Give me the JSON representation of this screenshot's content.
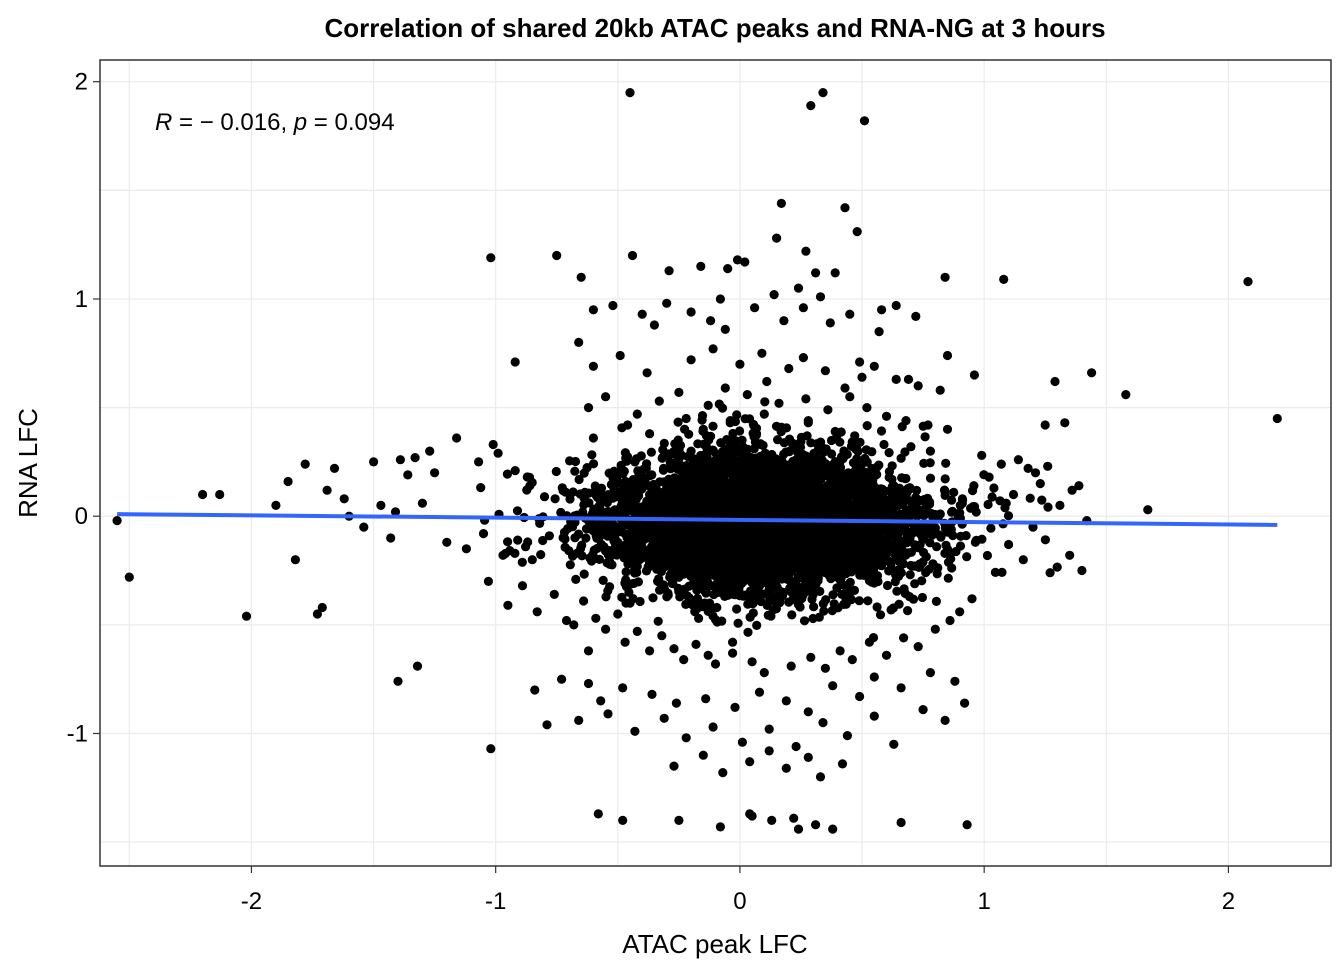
{
  "chart_data": {
    "type": "scatter",
    "title": "Correlation of shared 20kb ATAC peaks and RNA-NG  at 3 hours",
    "xlabel": "ATAC peak LFC",
    "ylabel": "RNA LFC",
    "xlim": [
      -2.62,
      2.42
    ],
    "ylim": [
      -1.61,
      2.1
    ],
    "x_ticks": [
      -2,
      -1,
      0,
      1,
      2
    ],
    "x_tick_labels": [
      "-2",
      "-1",
      "0",
      "1",
      "2"
    ],
    "y_ticks": [
      -1,
      0,
      1,
      2
    ],
    "y_tick_labels": [
      "-1",
      "0",
      "1",
      "2"
    ],
    "grid": true,
    "annotation": {
      "r_symbol": "R",
      "r_text": " = − 0.016, ",
      "p_symbol": "p",
      "p_text": " = 0.094"
    },
    "fit_line": {
      "color": "#3366ff",
      "x": [
        -2.55,
        2.2
      ],
      "y": [
        0.01,
        -0.04
      ]
    },
    "point_color": "#000000",
    "points_x": [
      -0.45,
      0.29,
      0.34,
      0.51,
      0.17,
      0.43,
      0.15,
      -0.01,
      0.27,
      0.48,
      -1.02,
      -0.75,
      -0.65,
      -0.44,
      -0.29,
      -0.16,
      -0.05,
      0.02,
      0.31,
      0.39,
      0.84,
      1.08,
      2.08,
      0.24,
      0.33,
      -0.6,
      -0.52,
      -0.4,
      -0.3,
      -0.2,
      -0.08,
      0.06,
      0.14,
      0.26,
      0.45,
      0.58,
      0.64,
      0.72,
      -0.35,
      -0.12,
      -0.06,
      0.18,
      0.37,
      0.57,
      0.85,
      0.96,
      -0.92,
      1.29,
      1.44,
      2.2,
      1.58,
      1.67,
      1.25,
      1.33,
      -2.55,
      -2.5,
      -2.2,
      -2.13,
      -2.02,
      -1.78,
      -1.73,
      -1.71,
      -1.66,
      -1.62,
      -1.5,
      -1.47,
      -1.39,
      -1.36,
      -1.33,
      -1.3,
      -1.27,
      -1.25,
      -1.16,
      -1.07,
      -1.01,
      -0.99,
      -0.92,
      -0.86,
      -0.8,
      -1.9,
      -1.85,
      -1.82,
      -1.69,
      -1.6,
      -1.54,
      -1.43,
      -1.41,
      -1.2,
      -1.12,
      -1.05,
      -0.97,
      -0.91,
      -0.85,
      -0.78,
      1.02,
      1.07,
      1.12,
      1.18,
      1.23,
      1.31,
      1.36,
      1.42,
      1.1,
      1.16,
      1.2,
      1.27,
      1.35,
      1.4,
      0.99,
      1.04,
      1.09,
      1.14,
      1.21,
      1.26,
      -1.03,
      -0.95,
      -0.89,
      -0.83,
      -0.76,
      -0.71,
      -0.68,
      -0.64,
      -0.59,
      -0.55,
      -0.5,
      -0.47,
      -0.42,
      -0.37,
      -0.32,
      -0.27,
      -0.23,
      -0.18,
      -0.13,
      -0.1,
      -0.03,
      0.05,
      0.1,
      0.21,
      0.29,
      0.35,
      0.41,
      0.46,
      0.53,
      0.6,
      0.67,
      0.73,
      0.8,
      0.86,
      0.9,
      0.95,
      -0.84,
      -0.73,
      -0.62,
      -0.57,
      -0.48,
      -0.36,
      -0.26,
      -0.14,
      -0.02,
      0.08,
      0.19,
      0.28,
      0.38,
      0.49,
      0.55,
      0.66,
      0.78,
      0.88,
      -1.02,
      -0.79,
      -0.66,
      -0.54,
      -0.43,
      -0.31,
      -0.22,
      -0.11,
      0.01,
      0.12,
      0.23,
      0.34,
      0.44,
      0.55,
      0.63,
      0.75,
      0.84,
      0.92,
      -0.66,
      -0.6,
      -0.49,
      -0.38,
      -0.2,
      -0.11,
      0.0,
      0.09,
      0.2,
      0.26,
      0.35,
      0.49,
      0.5,
      0.55,
      0.64,
      0.73,
      0.82,
      -0.62,
      -0.55,
      -0.42,
      -0.33,
      -0.25,
      -0.13,
      -0.06,
      0.03,
      0.16,
      0.27,
      0.36,
      0.45,
      0.52,
      0.6,
      0.68,
      0.77,
      0.85,
      -0.6,
      -0.46,
      -0.37,
      -0.22,
      -0.15,
      -0.04,
      0.1,
      0.17,
      0.28,
      0.39,
      0.47,
      0.59,
      0.7,
      0.78,
      -0.27,
      -0.15,
      -0.07,
      0.04,
      0.12,
      0.19,
      0.28,
      0.33,
      0.42,
      -1.4,
      -1.32,
      -0.58,
      -0.48,
      0.93,
      0.66,
      -0.25,
      -0.08,
      0.05,
      0.13,
      0.24,
      0.31,
      0.22,
      0.04,
      0.38,
      -0.45,
      -0.62,
      -0.03,
      0.11,
      0.69,
      0.43
    ],
    "points_y": [
      1.95,
      1.89,
      1.95,
      1.82,
      1.44,
      1.42,
      1.28,
      1.18,
      1.22,
      1.31,
      1.19,
      1.2,
      1.1,
      1.2,
      1.13,
      1.15,
      1.14,
      1.17,
      1.12,
      1.12,
      1.1,
      1.09,
      1.08,
      1.05,
      1.01,
      0.95,
      0.97,
      0.93,
      0.98,
      0.94,
      1.0,
      0.96,
      1.02,
      0.96,
      0.93,
      0.95,
      0.97,
      0.92,
      0.88,
      0.9,
      0.86,
      0.9,
      0.89,
      0.85,
      0.74,
      0.65,
      0.71,
      0.62,
      0.66,
      0.45,
      0.56,
      0.03,
      0.42,
      0.43,
      -0.02,
      -0.28,
      0.1,
      0.1,
      -0.46,
      0.24,
      -0.45,
      -0.42,
      0.22,
      0.08,
      0.25,
      0.05,
      0.26,
      0.19,
      0.27,
      0.06,
      0.3,
      0.2,
      0.36,
      0.25,
      0.33,
      0.29,
      0.21,
      0.14,
      0.09,
      0.05,
      0.16,
      -0.2,
      0.12,
      0.0,
      -0.05,
      -0.1,
      0.02,
      -0.12,
      -0.15,
      -0.08,
      -0.18,
      -0.11,
      -0.2,
      -0.09,
      0.18,
      0.24,
      0.1,
      0.22,
      0.15,
      0.05,
      0.12,
      -0.02,
      -0.13,
      -0.2,
      -0.05,
      -0.26,
      -0.18,
      -0.25,
      0.28,
      0.13,
      0.06,
      0.26,
      0.2,
      0.23,
      -0.3,
      -0.41,
      -0.32,
      -0.44,
      -0.36,
      -0.48,
      -0.5,
      -0.39,
      -0.47,
      -0.52,
      -0.45,
      -0.58,
      -0.53,
      -0.62,
      -0.55,
      -0.61,
      -0.66,
      -0.59,
      -0.64,
      -0.68,
      -0.63,
      -0.67,
      -0.72,
      -0.69,
      -0.65,
      -0.7,
      -0.62,
      -0.66,
      -0.58,
      -0.64,
      -0.56,
      -0.6,
      -0.52,
      -0.48,
      -0.44,
      -0.38,
      -0.8,
      -0.75,
      -0.77,
      -0.85,
      -0.79,
      -0.82,
      -0.86,
      -0.84,
      -0.88,
      -0.81,
      -0.85,
      -0.9,
      -0.78,
      -0.83,
      -0.74,
      -0.79,
      -0.72,
      -0.76,
      -1.07,
      -0.96,
      -0.94,
      -0.91,
      -0.99,
      -0.93,
      -1.02,
      -0.97,
      -1.04,
      -0.98,
      -1.06,
      -0.95,
      -1.01,
      -0.92,
      -1.05,
      -0.89,
      -0.94,
      -0.86,
      0.8,
      0.69,
      0.74,
      0.66,
      0.72,
      0.77,
      0.7,
      0.75,
      0.68,
      0.73,
      0.67,
      0.71,
      0.64,
      0.69,
      0.63,
      0.6,
      0.58,
      0.5,
      0.55,
      0.47,
      0.53,
      0.57,
      0.51,
      0.59,
      0.56,
      0.52,
      0.54,
      0.49,
      0.55,
      0.5,
      0.46,
      0.44,
      0.42,
      0.4,
      0.36,
      0.42,
      0.38,
      0.45,
      0.4,
      0.43,
      0.47,
      0.41,
      0.44,
      0.39,
      0.37,
      0.33,
      0.32,
      0.3,
      -1.15,
      -1.1,
      -1.18,
      -1.13,
      -1.08,
      -1.16,
      -1.11,
      -1.2,
      -1.14,
      -0.76,
      -0.69,
      -1.37,
      -1.4,
      -1.42,
      -1.41,
      -1.4,
      -1.43,
      -1.38,
      -1.4,
      -1.44,
      -1.42,
      -1.39,
      -1.37,
      -1.44,
      -0.4,
      -0.62,
      -0.58,
      0.62,
      0.63,
      0.59
    ]
  }
}
